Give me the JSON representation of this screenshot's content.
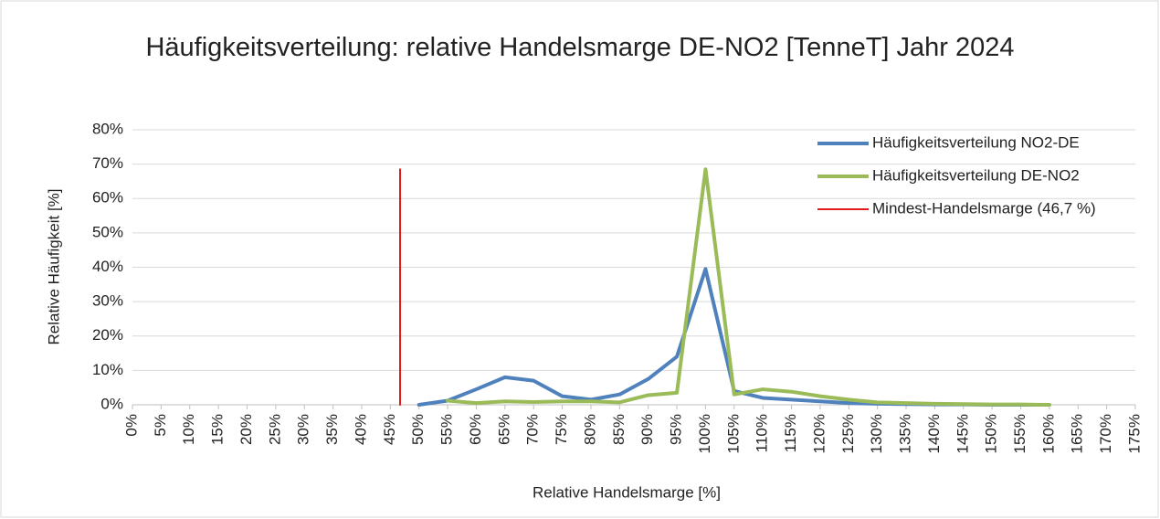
{
  "chart_data": {
    "type": "line",
    "title": "Häufigkeitsverteilung: relative Handelsmarge DE-NO2 [TenneT] Jahr 2024",
    "xlabel": "Relative Handelsmarge [%]",
    "ylabel": "Relative Häufigkeit [%]",
    "xlim": [
      0,
      175
    ],
    "ylim": [
      0,
      80
    ],
    "xticks": [
      {
        "value": 0,
        "label": "0%"
      },
      {
        "value": 5,
        "label": "5%"
      },
      {
        "value": 10,
        "label": "10%"
      },
      {
        "value": 15,
        "label": "15%"
      },
      {
        "value": 20,
        "label": "20%"
      },
      {
        "value": 25,
        "label": "25%"
      },
      {
        "value": 30,
        "label": "30%"
      },
      {
        "value": 35,
        "label": "35%"
      },
      {
        "value": 40,
        "label": "40%"
      },
      {
        "value": 45,
        "label": "45%"
      },
      {
        "value": 50,
        "label": "50%"
      },
      {
        "value": 55,
        "label": "55%"
      },
      {
        "value": 60,
        "label": "60%"
      },
      {
        "value": 65,
        "label": "65%"
      },
      {
        "value": 70,
        "label": "70%"
      },
      {
        "value": 75,
        "label": "75%"
      },
      {
        "value": 80,
        "label": "80%"
      },
      {
        "value": 85,
        "label": "85%"
      },
      {
        "value": 90,
        "label": "90%"
      },
      {
        "value": 95,
        "label": "95%"
      },
      {
        "value": 100,
        "label": "100%"
      },
      {
        "value": 105,
        "label": "105%"
      },
      {
        "value": 110,
        "label": "110%"
      },
      {
        "value": 115,
        "label": "115%"
      },
      {
        "value": 120,
        "label": "120%"
      },
      {
        "value": 125,
        "label": "125%"
      },
      {
        "value": 130,
        "label": "130%"
      },
      {
        "value": 135,
        "label": "135%"
      },
      {
        "value": 140,
        "label": "140%"
      },
      {
        "value": 145,
        "label": "145%"
      },
      {
        "value": 150,
        "label": "150%"
      },
      {
        "value": 155,
        "label": "155%"
      },
      {
        "value": 160,
        "label": "160%"
      },
      {
        "value": 165,
        "label": "165%"
      },
      {
        "value": 170,
        "label": "170%"
      },
      {
        "value": 175,
        "label": "175%"
      }
    ],
    "yticks": [
      {
        "value": 0,
        "label": "0%"
      },
      {
        "value": 10,
        "label": "10%"
      },
      {
        "value": 20,
        "label": "20%"
      },
      {
        "value": 30,
        "label": "30%"
      },
      {
        "value": 40,
        "label": "40%"
      },
      {
        "value": 50,
        "label": "50%"
      },
      {
        "value": 60,
        "label": "60%"
      },
      {
        "value": 70,
        "label": "70%"
      },
      {
        "value": 80,
        "label": "80%"
      }
    ],
    "grid": true,
    "legend": "top-right",
    "series": [
      {
        "name": "Häufigkeitsverteilung NO2-DE",
        "color": "#4f81bd",
        "line_width": 4,
        "x": [
          50,
          55,
          60,
          65,
          70,
          75,
          80,
          85,
          90,
          95,
          100,
          105,
          110,
          115,
          120,
          125,
          130,
          135,
          140,
          145,
          150,
          155,
          160
        ],
        "values": [
          0,
          1.2,
          4.5,
          8,
          7,
          2.5,
          1.5,
          3,
          7.5,
          14,
          39.5,
          4,
          2,
          1.5,
          1,
          0.5,
          0.3,
          0.2,
          0.1,
          0.1,
          0,
          0,
          0
        ]
      },
      {
        "name": "Häufigkeitsverteilung DE-NO2",
        "color": "#9bbb59",
        "line_width": 4,
        "x": [
          55,
          60,
          65,
          70,
          75,
          80,
          85,
          90,
          95,
          100,
          105,
          110,
          115,
          120,
          125,
          130,
          135,
          140,
          145,
          150,
          155,
          160
        ],
        "values": [
          1.2,
          0.5,
          1,
          0.8,
          1,
          1,
          0.7,
          2.8,
          3.5,
          68.5,
          3,
          4.5,
          3.8,
          2.5,
          1.5,
          0.7,
          0.5,
          0.3,
          0.2,
          0.1,
          0.1,
          0
        ]
      },
      {
        "name": "Mindest-Handelsmarge (46,7 %)",
        "color": "#e31a1c",
        "line_width": 2,
        "x": [
          46.7,
          46.7
        ],
        "values": [
          0,
          68.5
        ]
      }
    ]
  }
}
